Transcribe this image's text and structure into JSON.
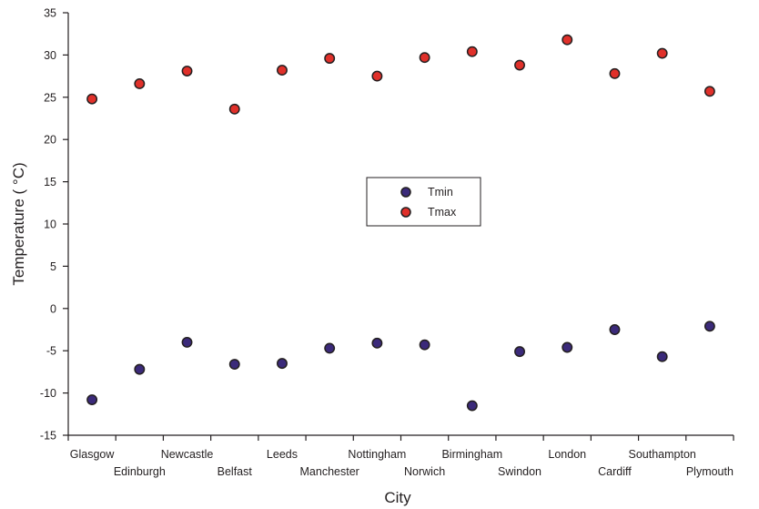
{
  "chart_data": {
    "type": "scatter",
    "xlabel": "City",
    "ylabel": "Temperature ( °C)",
    "ylim": [
      -15,
      35
    ],
    "yticks": [
      -15,
      -10,
      -5,
      0,
      5,
      10,
      15,
      20,
      25,
      30,
      35
    ],
    "categories": [
      "Glasgow",
      "Edinburgh",
      "Newcastle",
      "Belfast",
      "Leeds",
      "Manchester",
      "Nottingham",
      "Norwich",
      "Birmingham",
      "Swindon",
      "London",
      "Cardiff",
      "Southampton",
      "Plymouth"
    ],
    "series": [
      {
        "name": "Tmin",
        "color": "#3b2a7a",
        "values": [
          -10.8,
          -7.2,
          -4.0,
          -6.6,
          -6.5,
          -4.7,
          -4.1,
          -4.3,
          -11.5,
          -5.1,
          -4.6,
          -2.5,
          -5.7,
          -2.1
        ]
      },
      {
        "name": "Tmax",
        "color": "#e0302a",
        "values": [
          24.8,
          26.6,
          28.1,
          23.6,
          28.2,
          29.6,
          27.5,
          29.7,
          30.4,
          28.8,
          31.8,
          27.8,
          30.2,
          25.7
        ]
      }
    ],
    "legend_position": "center",
    "grid": false
  }
}
